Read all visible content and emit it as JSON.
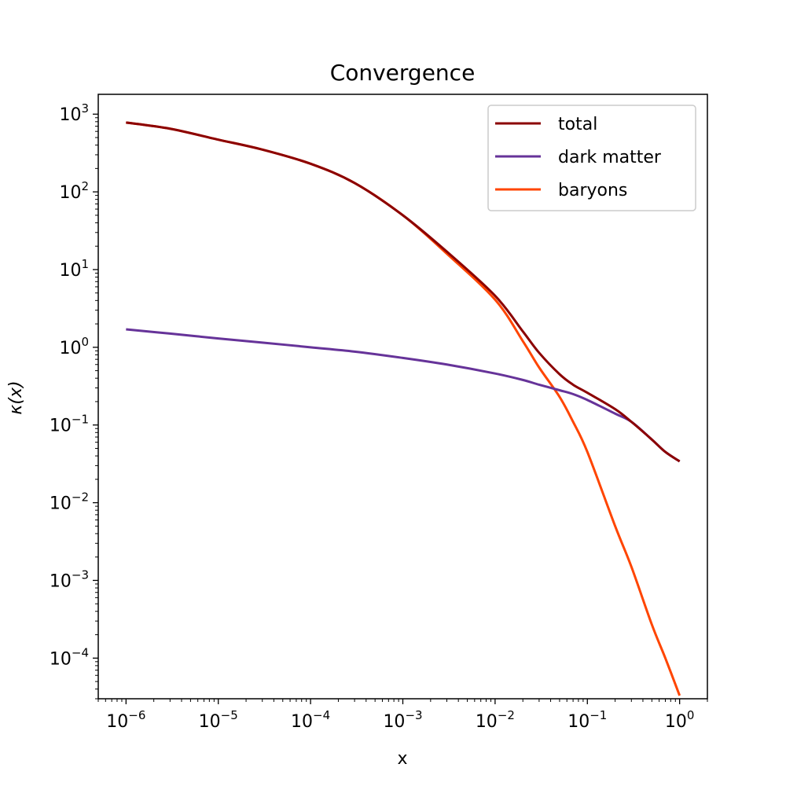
{
  "chart_data": {
    "type": "line",
    "title": "Convergence",
    "xlabel": "x",
    "ylabel": "κ(x)",
    "xscale": "log",
    "yscale": "log",
    "xlim": [
      5e-07,
      2.0
    ],
    "ylim": [
      3e-05,
      1800.0
    ],
    "grid": false,
    "legend_position": "top-right",
    "xticks": [
      {
        "base": "10",
        "exp": "−6",
        "value": 1e-06
      },
      {
        "base": "10",
        "exp": "−5",
        "value": 1e-05
      },
      {
        "base": "10",
        "exp": "−4",
        "value": 0.0001
      },
      {
        "base": "10",
        "exp": "−3",
        "value": 0.001
      },
      {
        "base": "10",
        "exp": "−2",
        "value": 0.01
      },
      {
        "base": "10",
        "exp": "−1",
        "value": 0.1
      },
      {
        "base": "10",
        "exp": "0",
        "value": 1
      }
    ],
    "yticks": [
      {
        "base": "10",
        "exp": "3",
        "value": 1000.0
      },
      {
        "base": "10",
        "exp": "2",
        "value": 100.0
      },
      {
        "base": "10",
        "exp": "1",
        "value": 10.0
      },
      {
        "base": "10",
        "exp": "0",
        "value": 1
      },
      {
        "base": "10",
        "exp": "−1",
        "value": 0.1
      },
      {
        "base": "10",
        "exp": "−2",
        "value": 0.01
      },
      {
        "base": "10",
        "exp": "−3",
        "value": 0.001
      },
      {
        "base": "10",
        "exp": "−4",
        "value": 0.0001
      }
    ],
    "series": [
      {
        "name": "total",
        "color": "#8b0000",
        "x": [
          1e-06,
          3e-06,
          1e-05,
          3e-05,
          0.0001,
          0.0003,
          0.001,
          0.003,
          0.01,
          0.02,
          0.03,
          0.05,
          0.07,
          0.1,
          0.2,
          0.3,
          0.5,
          0.7,
          1
        ],
        "y": [
          780,
          650,
          470,
          350,
          230,
          130,
          50,
          17,
          4.6,
          1.6,
          0.85,
          0.45,
          0.33,
          0.26,
          0.16,
          0.11,
          0.065,
          0.045,
          0.034
        ]
      },
      {
        "name": "dark matter",
        "color": "#663399",
        "x": [
          1e-06,
          3e-06,
          1e-05,
          3e-05,
          0.0001,
          0.0003,
          0.001,
          0.003,
          0.01,
          0.02,
          0.03,
          0.05,
          0.07,
          0.1,
          0.2,
          0.3,
          0.5,
          0.7,
          1
        ],
        "y": [
          1.7,
          1.5,
          1.3,
          1.15,
          1.0,
          0.88,
          0.73,
          0.6,
          0.46,
          0.38,
          0.33,
          0.28,
          0.25,
          0.21,
          0.14,
          0.11,
          0.065,
          0.045,
          0.034
        ]
      },
      {
        "name": "baryons",
        "color": "#ff4500",
        "x": [
          1e-06,
          3e-06,
          1e-05,
          3e-05,
          0.0001,
          0.0003,
          0.001,
          0.003,
          0.01,
          0.02,
          0.03,
          0.05,
          0.07,
          0.1,
          0.2,
          0.3,
          0.5,
          0.7,
          1
        ],
        "y": [
          780,
          650,
          470,
          350,
          230,
          130,
          50,
          16,
          4.1,
          1.2,
          0.55,
          0.23,
          0.11,
          0.045,
          0.005,
          0.0015,
          0.00027,
          0.0001,
          3.3e-05
        ]
      }
    ]
  }
}
